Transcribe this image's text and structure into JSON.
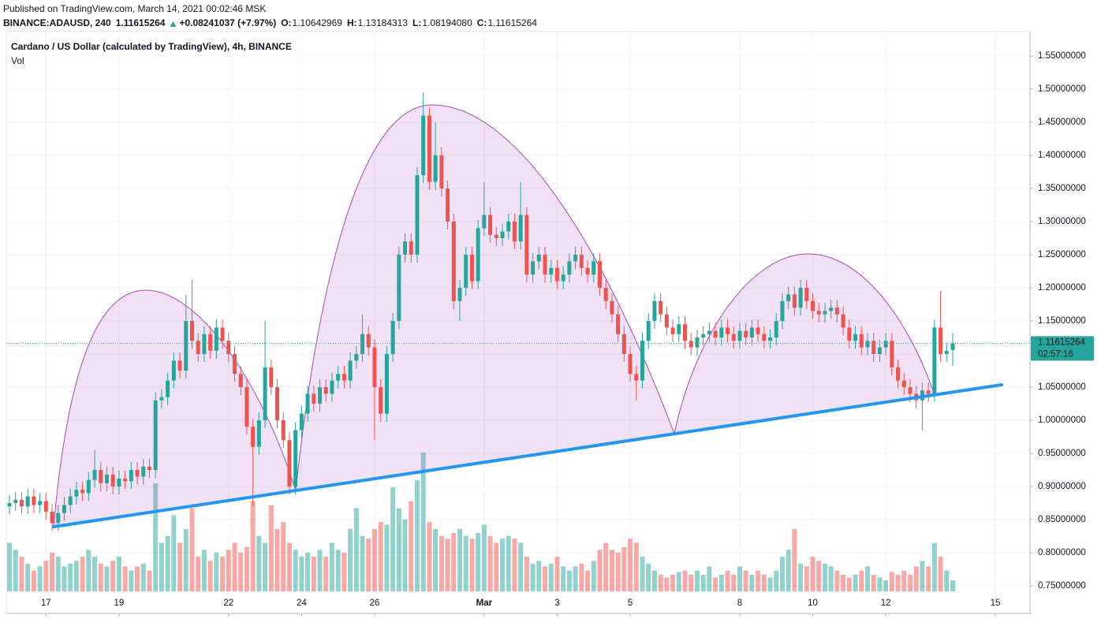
{
  "header": {
    "published": "Published on TradingView.com, March 14, 2021 00:02:46 MSK",
    "symbol": "BINANCE:ADAUSD, 240",
    "price": "1.11615264",
    "change": "+0.08241037 (+7.97%)",
    "ohlc": [
      {
        "label": "O:",
        "value": "1.10642969"
      },
      {
        "label": "H:",
        "value": "1.13184313"
      },
      {
        "label": "L:",
        "value": "1.08194080"
      },
      {
        "label": "C:",
        "value": "1.11615264"
      }
    ]
  },
  "chart_data": {
    "type": "candlestick",
    "title": "Cardano / US Dollar (calculated by TradingView), 4h, BINANCE",
    "volume_label": "Vol",
    "up_color": "#26a69a",
    "down_color": "#ef5350",
    "xlim": [
      -0.52,
      167.7
    ],
    "xticks": [
      {
        "value": 6,
        "label": "17"
      },
      {
        "value": 18,
        "label": "19"
      },
      {
        "value": 36,
        "label": "22"
      },
      {
        "value": 48,
        "label": "24"
      },
      {
        "value": 60,
        "label": "26"
      },
      {
        "value": 78,
        "label": "Mar"
      },
      {
        "value": 90,
        "label": "3"
      },
      {
        "value": 102,
        "label": "5"
      },
      {
        "value": 120,
        "label": "8"
      },
      {
        "value": 132,
        "label": "10"
      },
      {
        "value": 144,
        "label": "12"
      },
      {
        "value": 162,
        "label": "15"
      }
    ],
    "ylim": [
      0.7083,
      1.5869
    ],
    "yticks": [
      {
        "value": 0.75,
        "label": "0.75000000"
      },
      {
        "value": 0.8,
        "label": "0.80000000"
      },
      {
        "value": 0.85,
        "label": "0.85000000"
      },
      {
        "value": 0.9,
        "label": "0.90000000"
      },
      {
        "value": 0.95,
        "label": "0.95000000"
      },
      {
        "value": 1.0,
        "label": "1.00000000"
      },
      {
        "value": 1.05,
        "label": "1.05000000"
      },
      {
        "value": 1.1,
        "label": "1.10000000"
      },
      {
        "value": 1.15,
        "label": "1.15000000"
      },
      {
        "value": 1.2,
        "label": "1.20000000"
      },
      {
        "value": 1.25,
        "label": "1.25000000"
      },
      {
        "value": 1.3,
        "label": "1.30000000"
      },
      {
        "value": 1.35,
        "label": "1.35000000"
      },
      {
        "value": 1.4,
        "label": "1.40000000"
      },
      {
        "value": 1.45,
        "label": "1.45000000"
      },
      {
        "value": 1.5,
        "label": "1.50000000"
      },
      {
        "value": 1.55,
        "label": "1.55000000"
      }
    ],
    "grid": true,
    "last_price": {
      "value": 1.11615264,
      "label": "1.11615264"
    },
    "countdown": "02:57:16",
    "open": [
      0.87,
      0.875,
      0.88,
      0.87,
      0.885,
      0.872,
      0.878,
      0.862,
      0.845,
      0.86,
      0.872,
      0.885,
      0.895,
      0.89,
      0.91,
      0.925,
      0.905,
      0.918,
      0.9,
      0.912,
      0.908,
      0.925,
      0.915,
      0.93,
      0.925,
      1.03,
      1.035,
      1.06,
      1.09,
      1.075,
      1.15,
      1.12,
      1.1,
      1.13,
      1.105,
      1.14,
      1.12,
      1.1,
      1.07,
      1.05,
      0.99,
      0.96,
      1.0,
      1.08,
      1.05,
      1.0,
      0.97,
      0.9,
      0.985,
      1.01,
      1.04,
      1.025,
      1.05,
      1.04,
      1.06,
      1.07,
      1.06,
      1.09,
      1.1,
      1.13,
      1.11,
      1.05,
      1.01,
      1.1,
      1.15,
      1.25,
      1.27,
      1.25,
      1.37,
      1.46,
      1.36,
      1.4,
      1.35,
      1.3,
      1.18,
      1.2,
      1.25,
      1.21,
      1.29,
      1.31,
      1.28,
      1.275,
      1.285,
      1.3,
      1.27,
      1.31,
      1.22,
      1.24,
      1.25,
      1.22,
      1.23,
      1.21,
      1.22,
      1.24,
      1.25,
      1.23,
      1.22,
      1.24,
      1.2,
      1.18,
      1.16,
      1.13,
      1.1,
      1.07,
      1.06,
      1.12,
      1.15,
      1.18,
      1.16,
      1.14,
      1.13,
      1.145,
      1.12,
      1.11,
      1.125,
      1.13,
      1.135,
      1.125,
      1.14,
      1.13,
      1.12,
      1.135,
      1.125,
      1.14,
      1.13,
      1.12,
      1.125,
      1.15,
      1.18,
      1.19,
      1.17,
      1.2,
      1.18,
      1.165,
      1.16,
      1.165,
      1.17,
      1.16,
      1.14,
      1.12,
      1.13,
      1.11,
      1.12,
      1.1,
      1.11,
      1.12,
      1.08,
      1.06,
      1.05,
      1.04,
      1.03,
      1.045,
      1.04,
      1.14,
      1.1,
      1.106
    ],
    "high": [
      0.887,
      0.892,
      0.892,
      0.897,
      0.897,
      0.89,
      0.89,
      0.874,
      0.872,
      0.884,
      0.897,
      0.907,
      0.907,
      0.922,
      0.955,
      0.937,
      0.93,
      0.93,
      0.924,
      0.924,
      0.937,
      0.937,
      0.942,
      0.942,
      1.042,
      1.047,
      1.072,
      1.102,
      1.102,
      1.19,
      1.212,
      1.132,
      1.142,
      1.142,
      1.152,
      1.152,
      1.132,
      1.112,
      1.082,
      1.062,
      1.002,
      1.012,
      1.15,
      1.092,
      1.062,
      1.012,
      0.982,
      0.997,
      1.022,
      1.052,
      1.052,
      1.062,
      1.062,
      1.072,
      1.082,
      1.082,
      1.102,
      1.112,
      1.16,
      1.142,
      1.122,
      1.062,
      1.112,
      1.162,
      1.262,
      1.282,
      1.282,
      1.382,
      1.495,
      1.472,
      1.45,
      1.412,
      1.362,
      1.312,
      1.212,
      1.262,
      1.262,
      1.302,
      1.36,
      1.322,
      1.292,
      1.297,
      1.312,
      1.312,
      1.36,
      1.322,
      1.252,
      1.262,
      1.262,
      1.242,
      1.242,
      1.232,
      1.252,
      1.262,
      1.262,
      1.242,
      1.252,
      1.252,
      1.212,
      1.192,
      1.172,
      1.142,
      1.112,
      1.082,
      1.132,
      1.162,
      1.192,
      1.192,
      1.172,
      1.152,
      1.157,
      1.157,
      1.132,
      1.137,
      1.142,
      1.147,
      1.147,
      1.152,
      1.152,
      1.142,
      1.147,
      1.147,
      1.152,
      1.152,
      1.142,
      1.137,
      1.162,
      1.192,
      1.202,
      1.202,
      1.212,
      1.212,
      1.192,
      1.177,
      1.177,
      1.182,
      1.182,
      1.172,
      1.152,
      1.142,
      1.142,
      1.132,
      1.132,
      1.122,
      1.132,
      1.132,
      1.092,
      1.072,
      1.062,
      1.052,
      1.057,
      1.057,
      1.152,
      1.195,
      1.117,
      1.132
    ],
    "low": [
      0.858,
      0.863,
      0.858,
      0.858,
      0.86,
      0.86,
      0.85,
      0.833,
      0.833,
      0.848,
      0.86,
      0.873,
      0.878,
      0.878,
      0.898,
      0.893,
      0.893,
      0.888,
      0.888,
      0.896,
      0.896,
      0.903,
      0.903,
      0.913,
      0.913,
      1.018,
      1.023,
      1.048,
      1.063,
      1.063,
      1.108,
      1.088,
      1.088,
      1.093,
      1.093,
      1.108,
      1.088,
      1.058,
      1.038,
      0.978,
      0.87,
      0.948,
      0.988,
      1.038,
      0.988,
      0.958,
      0.888,
      0.888,
      0.973,
      0.998,
      1.013,
      1.013,
      1.028,
      1.028,
      1.048,
      1.048,
      1.048,
      1.078,
      1.088,
      1.098,
      0.97,
      0.998,
      0.998,
      1.088,
      1.138,
      1.238,
      1.238,
      1.238,
      1.358,
      1.348,
      1.348,
      1.338,
      1.288,
      1.168,
      1.15,
      1.188,
      1.198,
      1.198,
      1.278,
      1.268,
      1.263,
      1.263,
      1.273,
      1.258,
      1.258,
      1.208,
      1.208,
      1.228,
      1.208,
      1.208,
      1.198,
      1.198,
      1.208,
      1.228,
      1.218,
      1.208,
      1.208,
      1.188,
      1.168,
      1.148,
      1.118,
      1.088,
      1.058,
      1.03,
      1.048,
      1.108,
      1.138,
      1.148,
      1.128,
      1.118,
      1.118,
      1.108,
      1.098,
      1.098,
      1.113,
      1.118,
      1.113,
      1.113,
      1.118,
      1.108,
      1.108,
      1.113,
      1.113,
      1.118,
      1.108,
      1.108,
      1.113,
      1.138,
      1.168,
      1.158,
      1.158,
      1.168,
      1.153,
      1.148,
      1.148,
      1.153,
      1.148,
      1.128,
      1.108,
      1.108,
      1.098,
      1.098,
      1.088,
      1.088,
      1.098,
      1.068,
      1.048,
      1.038,
      1.028,
      1.018,
      0.985,
      1.028,
      1.028,
      1.088,
      1.088,
      1.082
    ],
    "close": [
      0.875,
      0.88,
      0.87,
      0.885,
      0.872,
      0.878,
      0.862,
      0.845,
      0.86,
      0.872,
      0.885,
      0.895,
      0.89,
      0.91,
      0.925,
      0.905,
      0.918,
      0.9,
      0.912,
      0.908,
      0.925,
      0.915,
      0.93,
      0.925,
      1.03,
      1.035,
      1.06,
      1.09,
      1.075,
      1.15,
      1.12,
      1.1,
      1.13,
      1.105,
      1.14,
      1.12,
      1.1,
      1.07,
      1.05,
      0.99,
      0.96,
      1.0,
      1.08,
      1.05,
      1.0,
      0.97,
      0.9,
      0.985,
      1.01,
      1.04,
      1.025,
      1.05,
      1.04,
      1.06,
      1.07,
      1.06,
      1.09,
      1.1,
      1.13,
      1.11,
      1.05,
      1.01,
      1.1,
      1.15,
      1.25,
      1.27,
      1.25,
      1.37,
      1.46,
      1.36,
      1.4,
      1.35,
      1.3,
      1.18,
      1.2,
      1.25,
      1.21,
      1.29,
      1.31,
      1.28,
      1.275,
      1.285,
      1.3,
      1.27,
      1.31,
      1.22,
      1.24,
      1.25,
      1.22,
      1.23,
      1.21,
      1.22,
      1.24,
      1.25,
      1.23,
      1.22,
      1.24,
      1.2,
      1.18,
      1.16,
      1.13,
      1.1,
      1.07,
      1.06,
      1.12,
      1.15,
      1.18,
      1.16,
      1.14,
      1.13,
      1.145,
      1.12,
      1.11,
      1.125,
      1.13,
      1.135,
      1.125,
      1.14,
      1.13,
      1.12,
      1.135,
      1.125,
      1.14,
      1.13,
      1.12,
      1.125,
      1.15,
      1.18,
      1.19,
      1.17,
      1.2,
      1.18,
      1.165,
      1.16,
      1.165,
      1.17,
      1.16,
      1.14,
      1.12,
      1.13,
      1.11,
      1.12,
      1.1,
      1.11,
      1.12,
      1.08,
      1.06,
      1.05,
      1.04,
      1.03,
      1.045,
      1.04,
      1.14,
      1.1,
      1.105,
      1.116
    ],
    "volume_lim": [
      0,
      100
    ],
    "volume": [
      35,
      30,
      25,
      20,
      15,
      18,
      22,
      28,
      25,
      18,
      20,
      22,
      25,
      30,
      25,
      20,
      18,
      22,
      25,
      18,
      15,
      18,
      20,
      15,
      78,
      35,
      40,
      55,
      35,
      45,
      60,
      25,
      30,
      22,
      28,
      25,
      30,
      35,
      28,
      32,
      65,
      40,
      35,
      62,
      45,
      50,
      35,
      30,
      25,
      28,
      25,
      30,
      25,
      35,
      30,
      28,
      45,
      60,
      40,
      38,
      45,
      50,
      48,
      75,
      60,
      52,
      65,
      80,
      100,
      50,
      45,
      40,
      38,
      42,
      45,
      40,
      38,
      42,
      48,
      40,
      35,
      38,
      40,
      38,
      35,
      25,
      20,
      22,
      18,
      20,
      25,
      18,
      15,
      18,
      20,
      15,
      22,
      30,
      35,
      30,
      28,
      32,
      38,
      35,
      25,
      20,
      15,
      12,
      10,
      12,
      14,
      15,
      12,
      15,
      12,
      18,
      10,
      12,
      15,
      12,
      18,
      15,
      12,
      15,
      12,
      10,
      15,
      25,
      30,
      45,
      20,
      18,
      25,
      22,
      20,
      18,
      15,
      12,
      10,
      12,
      15,
      18,
      12,
      10,
      8,
      14,
      12,
      15,
      12,
      18,
      22,
      18,
      35,
      25,
      15,
      8
    ]
  }
}
